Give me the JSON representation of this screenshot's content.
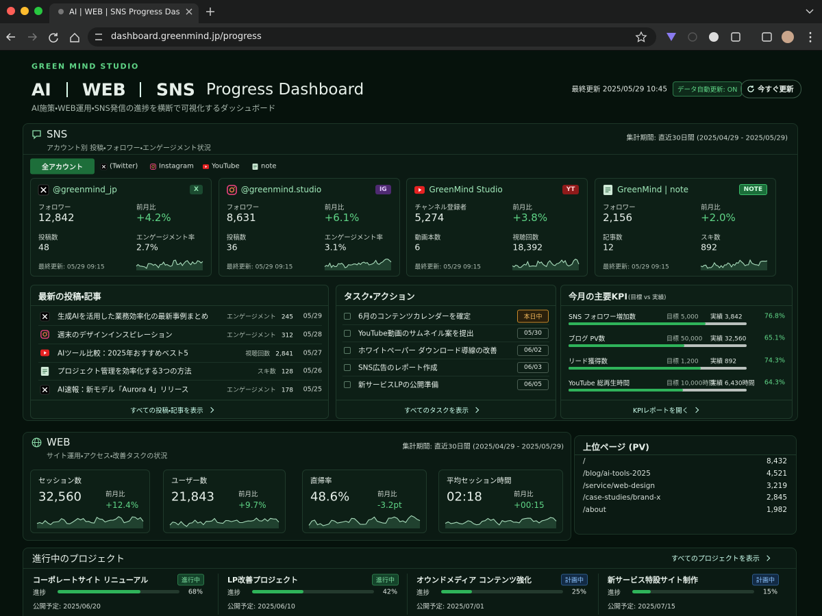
{
  "browser": {
    "tab_title": "AI | WEB | SNS Progress Dashboard",
    "url": "dashboard.greenmind.jp/progress"
  },
  "header": {
    "brand": "GREEN MIND STUDIO",
    "title_parts": [
      "AI",
      "WEB",
      "SNS",
      "Progress Dashboard"
    ],
    "subtitle": "AI施策・WEB運用・SNS発信の進捗を横断で可視化するダッシュボード",
    "last_updated": "最終更新 2025/05/29 10:45",
    "auto_update": "データ自動更新: ON",
    "refresh": "今すぐ更新"
  },
  "sns": {
    "title": "SNS",
    "subtitle": "アカウント別 投稿・フォロワー・エンゲージメント状況",
    "period": "集計期間: 直近30日間 (2025/04/29 - 2025/05/29)",
    "tabs": [
      "全アカウント",
      "(Twitter)",
      "Instagram",
      "YouTube",
      "note"
    ],
    "accounts": [
      {
        "platform": "x",
        "name": "@greenmind_jp",
        "badge": "X",
        "metrics": [
          {
            "label": "フォロワー",
            "value": "12,842"
          },
          {
            "label": "前月比",
            "value": "+4.2%"
          },
          {
            "label": "投稿数",
            "value": "48"
          },
          {
            "label": "エンゲージメント率",
            "value": "2.7%"
          }
        ],
        "updated": "最終更新: 05/29 09:15"
      },
      {
        "platform": "ig",
        "name": "@greenmind.studio",
        "badge": "IG",
        "metrics": [
          {
            "label": "フォロワー",
            "value": "8,631"
          },
          {
            "label": "前月比",
            "value": "+6.1%"
          },
          {
            "label": "投稿数",
            "value": "36"
          },
          {
            "label": "エンゲージメント率",
            "value": "3.1%"
          }
        ],
        "updated": "最終更新: 05/29 09:15"
      },
      {
        "platform": "yt",
        "name": "GreenMind Studio",
        "badge": "YT",
        "metrics": [
          {
            "label": "チャンネル登録者",
            "value": "5,274"
          },
          {
            "label": "前月比",
            "value": "+3.8%"
          },
          {
            "label": "動画本数",
            "value": "6"
          },
          {
            "label": "視聴回数",
            "value": "18,392"
          }
        ],
        "updated": "最終更新: 05/29 09:15"
      },
      {
        "platform": "note",
        "name": "GreenMind | note",
        "badge": "NOTE",
        "metrics": [
          {
            "label": "フォロワー",
            "value": "2,156"
          },
          {
            "label": "前月比",
            "value": "+2.0%"
          },
          {
            "label": "記事数",
            "value": "12"
          },
          {
            "label": "スキ数",
            "value": "892"
          }
        ],
        "updated": "最終更新: 05/29 09:15"
      }
    ]
  },
  "posts": {
    "title": "最新の投稿・記事",
    "items": [
      {
        "platform": "x",
        "title": "生成AIを活用した業務効率化の最新事例まとめ",
        "metric": "エンゲージメント",
        "value": "245",
        "date": "05/29"
      },
      {
        "platform": "ig",
        "title": "週末のデザインインスピレーション",
        "metric": "エンゲージメント",
        "value": "312",
        "date": "05/28"
      },
      {
        "platform": "yt",
        "title": "AIツール比較：2025年おすすめベスト5",
        "metric": "視聴回数",
        "value": "2,841",
        "date": "05/27"
      },
      {
        "platform": "note",
        "title": "プロジェクト管理を効率化する3つの方法",
        "metric": "スキ数",
        "value": "128",
        "date": "05/26"
      },
      {
        "platform": "x",
        "title": "AI速報：新モデル「Aurora 4」リリース",
        "metric": "エンゲージメント",
        "value": "178",
        "date": "05/25"
      }
    ],
    "footer": "すべての投稿・記事を表示"
  },
  "tasks": {
    "title": "タスク・アクション",
    "items": [
      {
        "text": "6月のコンテンツカレンダーを確定",
        "due": "本日中",
        "urgent": true
      },
      {
        "text": "YouTube動画のサムネイル案を提出",
        "due": "05/30",
        "urgent": false
      },
      {
        "text": "ホワイトペーパー ダウンロード導線の改善",
        "due": "06/02",
        "urgent": false
      },
      {
        "text": "SNS広告のレポート作成",
        "due": "06/03",
        "urgent": false
      },
      {
        "text": "新サービスLPの公開準備",
        "due": "06/05",
        "urgent": false
      }
    ],
    "footer": "すべてのタスクを表示"
  },
  "kpi": {
    "title": "今月の主要KPI",
    "note": "(目標 vs 実績)",
    "items": [
      {
        "name": "SNS フォロワー増加数",
        "target": "目標 5,000",
        "actual": "実績 3,842",
        "rate": {
          "value": 76.8,
          "label": "76.8%"
        }
      },
      {
        "name": "ブログ PV数",
        "target": "目標 50,000",
        "actual": "実績 32,560",
        "rate": {
          "value": 65.1,
          "label": "65.1%"
        }
      },
      {
        "name": "リード獲得数",
        "target": "目標 1,200",
        "actual": "実績 892",
        "rate": {
          "value": 74.3,
          "label": "74.3%"
        }
      },
      {
        "name": "YouTube 総再生時間",
        "target": "目標 10,000時間",
        "actual": "実績 6,430時間",
        "rate": {
          "value": 64.3,
          "label": "64.3%"
        }
      }
    ],
    "footer": "KPIレポートを開く"
  },
  "web": {
    "title": "WEB",
    "subtitle": "サイト運用・アクセス・改善タスクの状況",
    "period": "集計期間: 直近30日間 (2025/04/29 - 2025/05/29)",
    "metrics": [
      {
        "label": "セッション数",
        "value": "32,560",
        "delta_label": "前月比",
        "delta": "+12.4%"
      },
      {
        "label": "ユーザー数",
        "value": "21,843",
        "delta_label": "前月比",
        "delta": "+9.7%"
      },
      {
        "label": "直帰率",
        "value": "48.6%",
        "delta_label": "前月比",
        "delta": "-3.2pt"
      },
      {
        "label": "平均セッション時間",
        "value": "02:18",
        "delta_label": "前月比",
        "delta": "+00:15"
      }
    ]
  },
  "top_pages": {
    "title": "上位ページ (PV)",
    "rows": [
      [
        "/",
        "8,432"
      ],
      [
        "/blog/ai-tools-2025",
        "4,521"
      ],
      [
        "/service/web-design",
        "3,219"
      ],
      [
        "/case-studies/brand-x",
        "2,845"
      ],
      [
        "/about",
        "1,982"
      ]
    ]
  },
  "projects": {
    "title": "進行中のプロジェクト",
    "link": "すべてのプロジェクトを表示",
    "items": [
      {
        "name": "コーポレートサイト リニューアル",
        "status": "進行中",
        "progress_label": "進捗",
        "progress": {
          "value": 68,
          "label": "68%"
        },
        "release": "公開予定: 2025/06/20"
      },
      {
        "name": "LP改善プロジェクト",
        "status": "進行中",
        "progress_label": "進捗",
        "progress": {
          "value": 42,
          "label": "42%"
        },
        "release": "公開予定: 2025/06/10"
      },
      {
        "name": "オウンドメディア コンテンツ強化",
        "status": "計画中",
        "progress_label": "進捗",
        "progress": {
          "value": 25,
          "label": "25%"
        },
        "release": "公開予定: 2025/07/01"
      },
      {
        "name": "新サービス特設サイト制作",
        "status": "計画中",
        "progress_label": "進捗",
        "progress": {
          "value": 15,
          "label": "15%"
        },
        "release": "公開予定: 2025/07/15"
      }
    ]
  }
}
